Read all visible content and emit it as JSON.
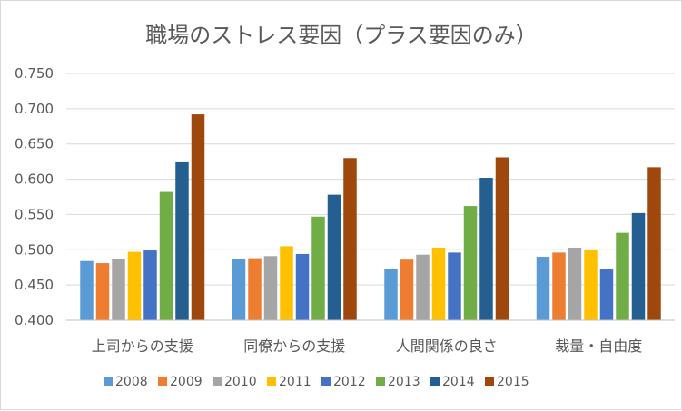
{
  "chart_data": {
    "type": "bar",
    "title": "職場のストレス要因（プラス要因のみ）",
    "categories": [
      "上司からの支援",
      "同僚からの支援",
      "人間関係の良さ",
      "裁量・自由度"
    ],
    "series": [
      {
        "name": "2008",
        "color": "#5B9BD5",
        "values": [
          0.484,
          0.487,
          0.473,
          0.49
        ]
      },
      {
        "name": "2009",
        "color": "#ED7D31",
        "values": [
          0.481,
          0.488,
          0.486,
          0.496
        ]
      },
      {
        "name": "2010",
        "color": "#A5A5A5",
        "values": [
          0.487,
          0.491,
          0.493,
          0.503
        ]
      },
      {
        "name": "2011",
        "color": "#FFC000",
        "values": [
          0.497,
          0.505,
          0.503,
          0.5
        ]
      },
      {
        "name": "2012",
        "color": "#4472C4",
        "values": [
          0.499,
          0.494,
          0.496,
          0.472
        ]
      },
      {
        "name": "2013",
        "color": "#70AD47",
        "values": [
          0.582,
          0.547,
          0.562,
          0.524
        ]
      },
      {
        "name": "2014",
        "color": "#255E91",
        "values": [
          0.624,
          0.578,
          0.602,
          0.552
        ]
      },
      {
        "name": "2015",
        "color": "#9E480E",
        "values": [
          0.692,
          0.63,
          0.631,
          0.617
        ]
      }
    ],
    "ylim": [
      0.4,
      0.75
    ],
    "yticks": [
      "0.400",
      "0.450",
      "0.500",
      "0.550",
      "0.600",
      "0.650",
      "0.700",
      "0.750"
    ],
    "grid": true,
    "legend_position": "bottom"
  }
}
